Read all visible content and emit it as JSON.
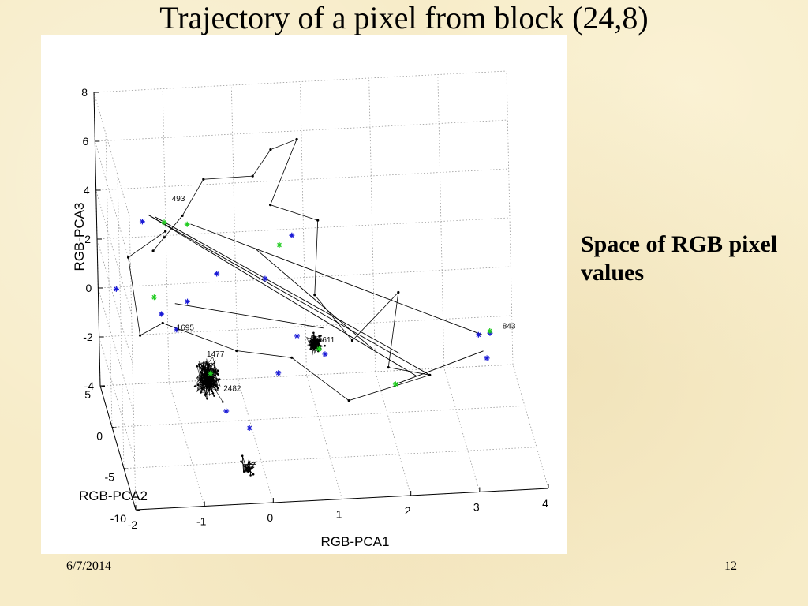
{
  "slide": {
    "title": "Trajectory of a pixel from block (24,8)",
    "caption": "Space of RGB pixel values",
    "footer_date": "6/7/2014",
    "page_number": "12"
  },
  "colors": {
    "background": "#f7ecc8",
    "trajectory_line": "#000000",
    "marker_blue": "#1a1ad6",
    "marker_green": "#22cc22"
  },
  "chart_data": {
    "type": "scatter",
    "projection": "3d",
    "title": "",
    "xlabel": "RGB-PCA1",
    "ylabel": "RGB-PCA2",
    "zlabel": "RGB-PCA3",
    "xlim": [
      -2,
      4
    ],
    "ylim": [
      -10,
      5
    ],
    "zlim": [
      -4,
      8
    ],
    "x_ticks": [
      "-2",
      "-1",
      "0",
      "1",
      "2",
      "3",
      "4"
    ],
    "y_ticks": [
      "-10",
      "-5",
      "0",
      "5"
    ],
    "z_ticks": [
      "-4",
      "-2",
      "0",
      "2",
      "4",
      "6",
      "8"
    ],
    "grid": true,
    "series": [
      {
        "role": "trajectory",
        "marker": "dot",
        "color": "#000000",
        "points": [
          {
            "x": -1.3,
            "y": 1.5,
            "z": 2.6
          },
          {
            "x": -1.15,
            "y": 1.0,
            "z": 3.3
          },
          {
            "x": -0.85,
            "y": 2.0,
            "z": 3.8
          },
          {
            "x": -0.5,
            "y": 3.0,
            "z": 4.9
          },
          {
            "x": 0.2,
            "y": 2.5,
            "z": 5.1
          },
          {
            "x": 0.5,
            "y": 3.5,
            "z": 5.8
          },
          {
            "x": 0.9,
            "y": 4.0,
            "z": 6.0
          },
          {
            "x": 0.4,
            "y": 1.0,
            "z": 4.4
          },
          {
            "x": 1.1,
            "y": 1.5,
            "z": 3.5
          },
          {
            "x": 1.0,
            "y": 0.5,
            "z": 0.8
          },
          {
            "x": 1.5,
            "y": -0.5,
            "z": -0.8
          },
          {
            "x": 2.2,
            "y": 0.0,
            "z": 0.9
          },
          {
            "x": 2.0,
            "y": -1.0,
            "z": -1.8
          },
          {
            "x": 2.6,
            "y": -1.0,
            "z": -2.2
          },
          {
            "x": 1.4,
            "y": -1.5,
            "z": -2.9
          },
          {
            "x": 0.6,
            "y": -1.0,
            "z": -1.2
          },
          {
            "x": -0.2,
            "y": -1.0,
            "z": -0.8
          },
          {
            "x": -1.2,
            "y": 1.0,
            "z": -0.2
          },
          {
            "x": -1.5,
            "y": 2.0,
            "z": -1.0
          },
          {
            "x": -1.6,
            "y": 3.5,
            "z": 1.7
          },
          {
            "x": -1.1,
            "y": 2.0,
            "z": 3.2
          }
        ]
      },
      {
        "role": "cluster",
        "name": "",
        "marker": "dot",
        "color": "#000000",
        "center": {
          "x": -0.65,
          "y": -2.0,
          "z": -1.5
        },
        "approx_point_count": 260
      },
      {
        "role": "cluster",
        "name": "",
        "marker": "dot",
        "color": "#000000",
        "center": {
          "x": 0.95,
          "y": -1.0,
          "z": -0.7
        },
        "approx_point_count": 160
      },
      {
        "role": "cluster",
        "name": "",
        "marker": "dot",
        "color": "#000000",
        "center": {
          "x": -0.25,
          "y": -7.0,
          "z": -3.6
        },
        "approx_point_count": 30
      },
      {
        "role": "markers",
        "marker": "star",
        "color": "#1a1ad6",
        "points": [
          {
            "x": -1.4,
            "y": 3.0,
            "z": 3.3
          },
          {
            "x": -1.8,
            "y": 3.0,
            "z": 0.6
          },
          {
            "x": -1.2,
            "y": 1.5,
            "z": 0.0
          },
          {
            "x": -1.0,
            "y": 1.0,
            "z": -0.5
          },
          {
            "x": -0.85,
            "y": 0.5,
            "z": 0.8
          },
          {
            "x": -0.4,
            "y": 1.0,
            "z": 1.7
          },
          {
            "x": 0.3,
            "y": 1.0,
            "z": 1.4
          },
          {
            "x": 0.75,
            "y": 2.5,
            "z": 2.6
          },
          {
            "x": 0.7,
            "y": -0.5,
            "z": -0.5
          },
          {
            "x": 0.4,
            "y": -1.0,
            "z": -1.8
          },
          {
            "x": 1.1,
            "y": -0.5,
            "z": -1.3
          },
          {
            "x": 3.35,
            "y": 0.0,
            "z": -1.0
          },
          {
            "x": 3.45,
            "y": -0.5,
            "z": -1.8
          },
          {
            "x": 3.55,
            "y": 1.0,
            "z": -1.3
          },
          {
            "x": -0.4,
            "y": -2.0,
            "z": -2.9
          },
          {
            "x": -0.1,
            "y": -3.0,
            "z": -3.3
          }
        ]
      },
      {
        "role": "markers",
        "marker": "star",
        "color": "#22cc22",
        "points": [
          {
            "x": -1.1,
            "y": 2.5,
            "z": 3.4
          },
          {
            "x": -0.75,
            "y": 3.0,
            "z": 3.1
          },
          {
            "x": 0.55,
            "y": 2.0,
            "z": 2.4
          },
          {
            "x": -1.3,
            "y": 1.5,
            "z": 0.7
          },
          {
            "x": -0.6,
            "y": -1.5,
            "z": -1.5
          },
          {
            "x": 2.1,
            "y": -1.0,
            "z": -2.5
          },
          {
            "x": 3.5,
            "y": -0.5,
            "z": -0.7
          },
          {
            "x": 1.0,
            "y": -1.0,
            "z": -0.9
          }
        ]
      },
      {
        "role": "chords",
        "color": "#000000",
        "segments": [
          [
            {
              "x": -1.3,
              "y": 3.5,
              "z": 3.4
            },
            {
              "x": 2.4,
              "y": -1.0,
              "z": -2.2
            }
          ],
          [
            {
              "x": -1.3,
              "y": 3.5,
              "z": 3.4
            },
            {
              "x": 2.6,
              "y": -1.0,
              "z": -2.2
            }
          ],
          [
            {
              "x": -1.2,
              "y": 3.5,
              "z": 3.3
            },
            {
              "x": 2.2,
              "y": 0.0,
              "z": -1.6
            }
          ],
          [
            {
              "x": -0.7,
              "y": 3.0,
              "z": 3.1
            },
            {
              "x": 3.4,
              "y": 0.0,
              "z": -1.0
            }
          ],
          [
            {
              "x": 0.2,
              "y": 2.0,
              "z": 2.3
            },
            {
              "x": 1.8,
              "y": -0.5,
              "z": -1.2
            }
          ],
          [
            {
              "x": -1.0,
              "y": 1.5,
              "z": 0.4
            },
            {
              "x": 1.1,
              "y": 0.0,
              "z": -0.4
            }
          ],
          [
            {
              "x": 2.1,
              "y": -1.0,
              "z": -2.5
            },
            {
              "x": 3.4,
              "y": -0.5,
              "z": -1.5
            }
          ]
        ]
      }
    ],
    "annotations": [
      {
        "text": "493",
        "x": -0.95,
        "y": 3.5,
        "z": 3.9
      },
      {
        "text": "1695",
        "x": -1.05,
        "y": -0.5,
        "z": 0.0
      },
      {
        "text": "1477",
        "x": -0.65,
        "y": -1.5,
        "z": -0.8
      },
      {
        "text": "2482",
        "x": -0.45,
        "y": -2.5,
        "z": -1.9
      },
      {
        "text": "1611",
        "x": 1.0,
        "y": -0.5,
        "z": -0.8
      },
      {
        "text": "843",
        "x": 3.7,
        "y": 0.0,
        "z": -0.8
      }
    ]
  }
}
